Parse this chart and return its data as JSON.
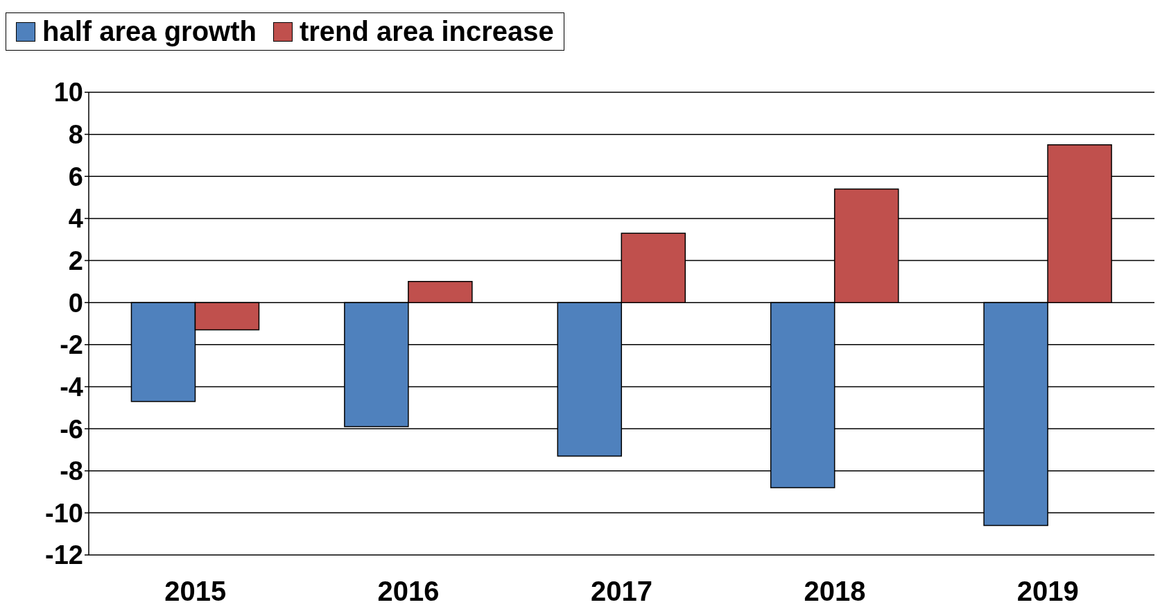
{
  "chart_data": {
    "type": "bar",
    "categories": [
      "2015",
      "2016",
      "2017",
      "2018",
      "2019"
    ],
    "series": [
      {
        "name": "half area growth",
        "color": "#4f81bd",
        "values": [
          -4.7,
          -5.9,
          -7.3,
          -8.8,
          -10.6
        ]
      },
      {
        "name": "trend area increase",
        "color": "#c0504d",
        "values": [
          -1.3,
          1.0,
          3.3,
          5.4,
          7.5
        ]
      }
    ],
    "ylim": [
      -12,
      10
    ],
    "yticks": [
      -12,
      -10,
      -8,
      -6,
      -4,
      -2,
      0,
      2,
      4,
      6,
      8,
      10
    ],
    "grid": "y",
    "legend": "top"
  }
}
